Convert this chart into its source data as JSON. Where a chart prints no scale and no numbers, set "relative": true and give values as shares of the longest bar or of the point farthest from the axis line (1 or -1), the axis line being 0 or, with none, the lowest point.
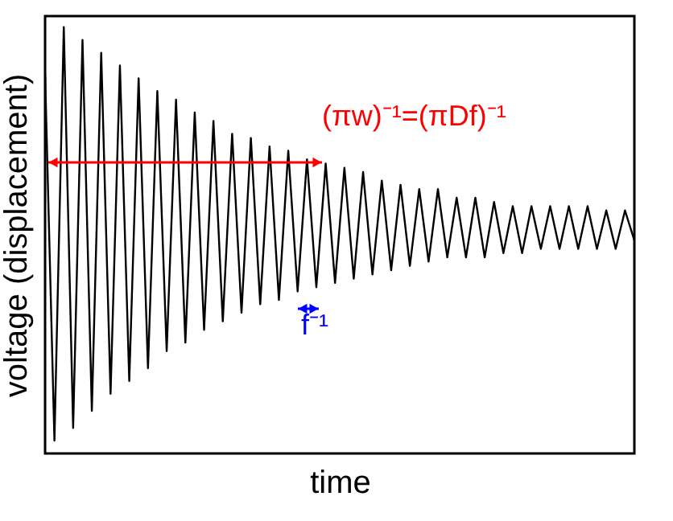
{
  "chart_data": {
    "type": "line",
    "relative": true,
    "xlabel": "time",
    "ylabel": "voltage (displacement)",
    "categories": [
      null,
      null,
      null,
      null,
      null,
      null,
      null,
      null,
      null,
      null,
      null,
      null,
      null,
      null,
      null,
      null,
      null,
      null,
      null,
      null,
      null,
      null,
      null,
      null,
      null,
      null,
      null,
      null,
      null,
      null,
      null,
      null,
      null,
      null,
      null,
      null,
      null,
      null,
      null,
      null,
      null,
      null,
      null,
      null,
      null,
      null,
      null,
      null,
      null,
      null,
      null,
      null,
      null,
      null,
      null,
      null,
      null,
      null,
      null,
      null,
      null,
      null,
      null,
      null
    ],
    "series": [
      {
        "color": "#000000",
        "values": [
          0.89,
          0.03,
          1,
          0.06,
          0.97,
          0.1,
          0.94,
          0.14,
          0.91,
          0.17,
          0.88,
          0.2,
          0.85,
          0.24,
          0.83,
          0.26,
          0.8,
          0.29,
          0.78,
          0.31,
          0.75,
          0.33,
          0.74,
          0.35,
          0.72,
          0.36,
          0.71,
          0.38,
          0.69,
          0.39,
          0.68,
          0.4,
          0.67,
          0.41,
          0.66,
          0.42,
          0.64,
          0.43,
          0.63,
          0.44,
          0.62,
          0.45,
          0.62,
          0.46,
          0.6,
          0.46,
          0.6,
          0.46,
          0.59,
          0.47,
          0.58,
          0.47,
          0.58,
          0.48,
          0.58,
          0.48,
          0.58,
          0.48,
          0.58,
          0.48,
          0.57,
          0.48,
          0.57,
          0.5
        ]
      }
    ],
    "annotations": [
      "(πw)⁻¹=(πDf)⁻¹",
      "f⁻¹"
    ],
    "grid": false,
    "legend": false,
    "tick_labels": false,
    "marker": "none",
    "line_style": "solid"
  }
}
